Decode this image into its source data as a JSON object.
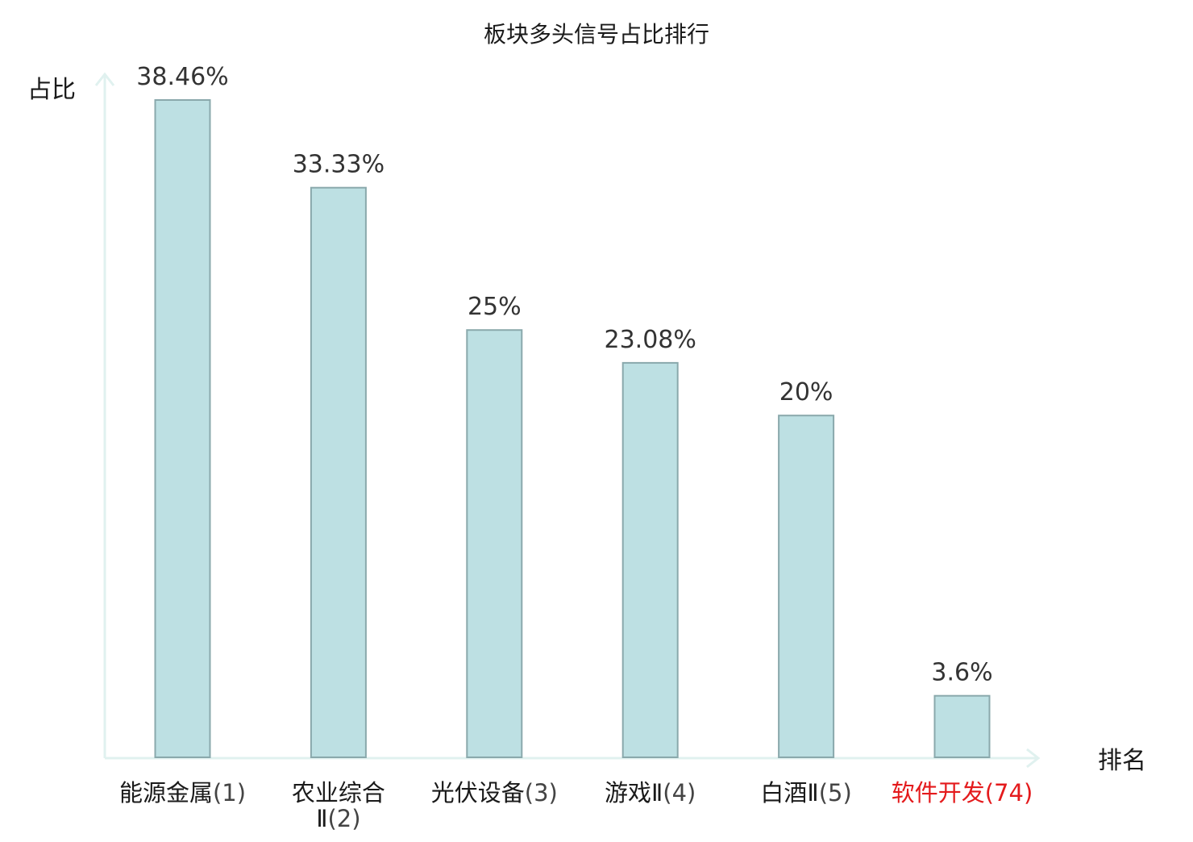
{
  "chart_data": {
    "type": "bar",
    "title": "板块多头信号占比排行",
    "xlabel": "排名",
    "ylabel": "占比",
    "ylim": [
      0,
      40
    ],
    "grid": false,
    "categories": [
      {
        "name": "能源金属",
        "rank": "(1)",
        "highlight": false
      },
      {
        "name": "农业综合Ⅱ",
        "rank": "(2)",
        "highlight": false
      },
      {
        "name": "光伏设备",
        "rank": "(3)",
        "highlight": false
      },
      {
        "name": "游戏Ⅱ",
        "rank": "(4)",
        "highlight": false
      },
      {
        "name": "白酒Ⅱ",
        "rank": "(5)",
        "highlight": false
      },
      {
        "name": "软件开发",
        "rank": "(74)",
        "highlight": true
      }
    ],
    "values": [
      38.46,
      33.33,
      25,
      23.08,
      20,
      3.6
    ],
    "value_labels": [
      "38.46%",
      "33.33%",
      "25%",
      "23.08%",
      "20%",
      "3.6%"
    ],
    "colors": {
      "bar_fill": "#bde0e3",
      "bar_stroke": "#8aa9ac",
      "axis": "#e0f1ef",
      "highlight_text": "#e41a1c",
      "normal_text": "#1a1a1a",
      "rank_text": "#444444"
    }
  }
}
